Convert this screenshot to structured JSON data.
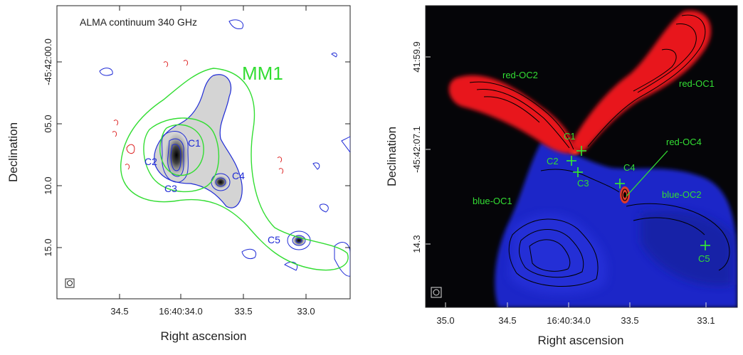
{
  "left_panel": {
    "title": "ALMA continuum 340 GHz",
    "region_label": "MM1",
    "xlabel": "Right ascension",
    "ylabel": "Declination",
    "x_ticks": [
      "34.5",
      "16:40:34.0",
      "33.5",
      "33.0"
    ],
    "y_ticks": [
      "-45:42:00.0",
      "05.0",
      "10.0",
      "15.0"
    ],
    "sources": [
      "C1",
      "C2",
      "C3",
      "C4",
      "C5"
    ],
    "beam_symbol": "beam"
  },
  "right_panel": {
    "xlabel": "Right ascension",
    "ylabel": "Declination",
    "x_ticks": [
      "35.0",
      "34.5",
      "16:40:34.0",
      "33.5",
      "33.1"
    ],
    "y_ticks": [
      "41:59.9",
      "-45:42:07.1",
      "14.3"
    ],
    "outflow_labels": [
      "red-OC2",
      "red-OC1",
      "red-OC4",
      "blue-OC1",
      "blue-OC2"
    ],
    "sources": [
      "C1",
      "C2",
      "C3",
      "C4",
      "C5"
    ]
  },
  "colors": {
    "contour_blue": "#1f2bd6",
    "contour_red": "#dd2222",
    "contour_green": "#33dd33",
    "marker_green": "#33ee33",
    "red_lobe": "#e8141a",
    "blue_lobe": "#1a25c8",
    "background_dark": "#050508"
  }
}
